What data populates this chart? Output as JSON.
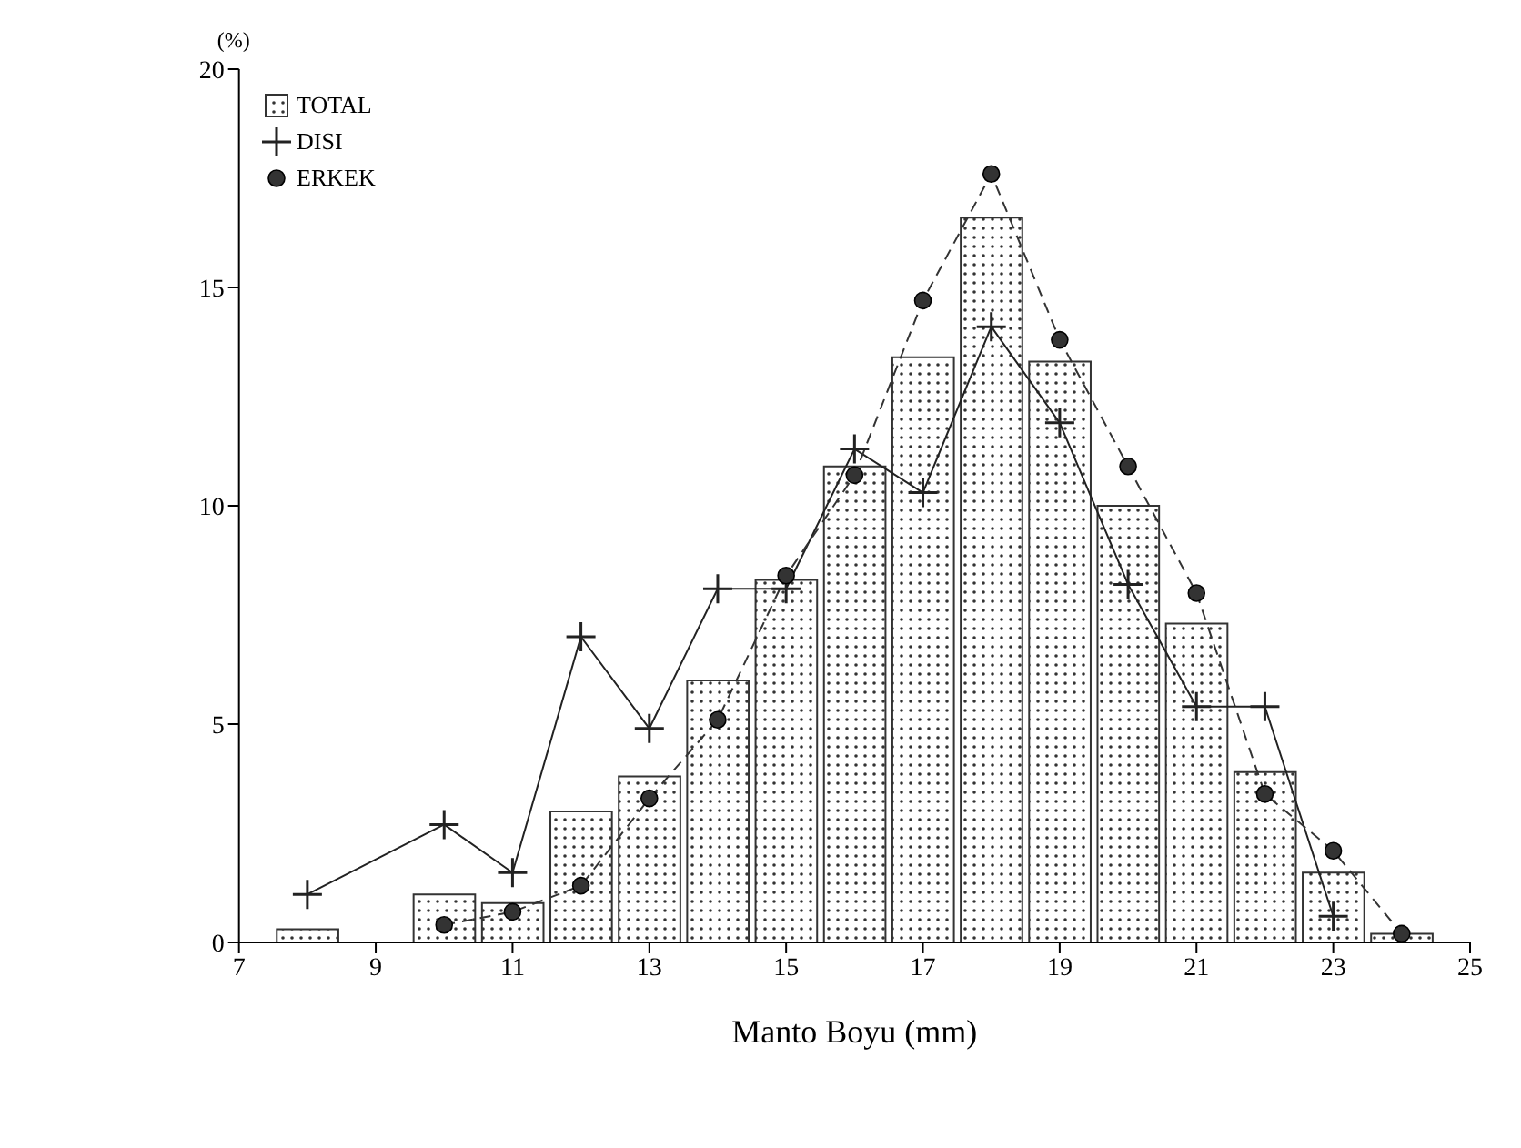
{
  "chart_data": {
    "type": "histogram",
    "xlabel": "Manto Boyu (mm)",
    "ylabel": "(%)",
    "series": [
      {
        "name": "TOTAL",
        "color": "#333333",
        "bins": [
          7.5,
          8.5,
          9.5,
          10.5,
          11.5,
          12.5,
          13.5,
          14.5,
          15.5,
          16.5,
          17.5,
          18.5,
          19.5,
          20.5,
          21.5,
          22.5,
          23.5,
          24.5
        ],
        "values": [
          0.3,
          0,
          1.1,
          0.9,
          3.0,
          3.8,
          6.0,
          8.3,
          10.9,
          13.4,
          16.6,
          13.3,
          10.0,
          7.3,
          3.9,
          1.6,
          0.2
        ]
      },
      {
        "name": "DISI",
        "type": "line",
        "color": "#222222",
        "marker": "cross",
        "line_style": "solid",
        "x": [
          8,
          10,
          11,
          12,
          13,
          14,
          15,
          16,
          17,
          18,
          19,
          20,
          21,
          22,
          23
        ],
        "values": [
          1.1,
          2.7,
          1.6,
          7.0,
          4.9,
          8.1,
          8.1,
          11.3,
          10.3,
          14.1,
          11.9,
          8.2,
          5.4,
          5.4,
          0.6
        ]
      },
      {
        "name": "ERKEK",
        "type": "line",
        "color": "#333333",
        "marker": "circle",
        "line_style": "dashed",
        "x": [
          10,
          11,
          12,
          13,
          14,
          15,
          16,
          17,
          18,
          19,
          20,
          21,
          22,
          23,
          24
        ],
        "values": [
          0.4,
          0.7,
          1.3,
          3.3,
          5.1,
          8.4,
          10.7,
          14.7,
          17.6,
          13.8,
          10.9,
          8.0,
          3.4,
          2.1,
          0.2
        ]
      }
    ],
    "xlim": [
      7,
      25
    ],
    "xticks": [
      7,
      9,
      11,
      13,
      15,
      17,
      19,
      21,
      23,
      25
    ],
    "ylim": [
      0,
      20
    ],
    "yticks": [
      0,
      5,
      10,
      15,
      20
    ],
    "grid": false,
    "legend": "top left"
  }
}
